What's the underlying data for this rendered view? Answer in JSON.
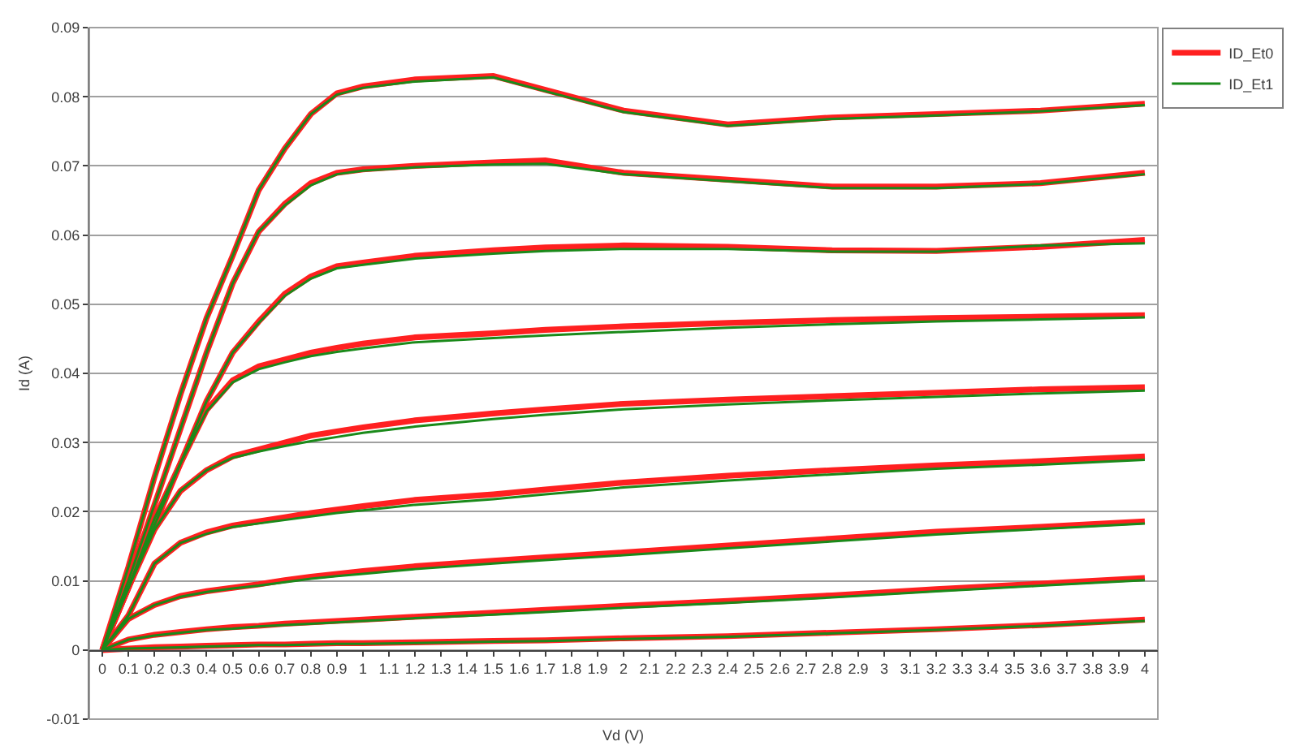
{
  "chart_data": {
    "type": "line",
    "xlabel": "Vd (V)",
    "ylabel": "Id (A)",
    "x": [
      0,
      0.1,
      0.2,
      0.3,
      0.4,
      0.5,
      0.6,
      0.7,
      0.8,
      0.9,
      1.0,
      1.2,
      1.5,
      1.7,
      2.0,
      2.4,
      2.8,
      3.2,
      3.6,
      4.0
    ],
    "xlim": [
      -0.05,
      4.05
    ],
    "xticks": [
      0,
      0.1,
      0.2,
      0.3,
      0.4,
      0.5,
      0.6,
      0.7,
      0.8,
      0.9,
      1,
      1.1,
      1.2,
      1.3,
      1.4,
      1.5,
      1.6,
      1.7,
      1.8,
      1.9,
      2,
      2.1,
      2.2,
      2.3,
      2.4,
      2.5,
      2.6,
      2.7,
      2.8,
      2.9,
      3,
      3.1,
      3.2,
      3.3,
      3.4,
      3.5,
      3.6,
      3.7,
      3.8,
      3.9,
      4
    ],
    "ylim": [
      -0.01,
      0.09
    ],
    "yticks": [
      -0.01,
      0,
      0.01,
      0.02,
      0.03,
      0.04,
      0.05,
      0.06,
      0.07,
      0.08,
      0.09
    ],
    "grid": "y",
    "legend": "top right",
    "marker": "none",
    "line_style": "solid",
    "series": [
      {
        "name": "ID_Et0",
        "color": "#ff2020",
        "values": [
          0,
          0.012,
          0.025,
          0.037,
          0.048,
          0.057,
          0.0665,
          0.0725,
          0.0775,
          0.0805,
          0.0815,
          0.0825,
          0.083,
          0.081,
          0.078,
          0.076,
          0.077,
          0.0775,
          0.078,
          0.079
        ]
      },
      {
        "color": "#ff2020",
        "values": [
          0,
          0.01,
          0.021,
          0.032,
          0.043,
          0.053,
          0.0605,
          0.0645,
          0.0675,
          0.069,
          0.0695,
          0.07,
          0.0705,
          0.0708,
          0.069,
          0.068,
          0.067,
          0.067,
          0.0675,
          0.069
        ]
      },
      {
        "color": "#ff2020",
        "values": [
          0,
          0.009,
          0.018,
          0.027,
          0.036,
          0.043,
          0.0475,
          0.0515,
          0.054,
          0.0555,
          0.056,
          0.057,
          0.0578,
          0.0582,
          0.0585,
          0.0583,
          0.0578,
          0.0577,
          0.0583,
          0.0593
        ]
      },
      {
        "color": "#ff2020",
        "values": [
          0,
          0.009,
          0.019,
          0.027,
          0.0347,
          0.039,
          0.041,
          0.042,
          0.043,
          0.0437,
          0.0443,
          0.0452,
          0.0458,
          0.0463,
          0.0468,
          0.0473,
          0.0477,
          0.048,
          0.0482,
          0.0484
        ]
      },
      {
        "color": "#ff2020",
        "values": [
          0,
          0.009,
          0.0174,
          0.023,
          0.026,
          0.028,
          0.029,
          0.03,
          0.031,
          0.0316,
          0.0322,
          0.0332,
          0.0342,
          0.0348,
          0.0356,
          0.0362,
          0.0367,
          0.0372,
          0.0377,
          0.038
        ]
      },
      {
        "color": "#ff2020",
        "values": [
          0,
          0.005,
          0.0125,
          0.0155,
          0.017,
          0.018,
          0.0186,
          0.0192,
          0.0198,
          0.0203,
          0.0208,
          0.0217,
          0.0225,
          0.0232,
          0.0242,
          0.0252,
          0.026,
          0.0267,
          0.0273,
          0.028
        ]
      },
      {
        "color": "#ff2020",
        "values": [
          0,
          0.0045,
          0.0065,
          0.0078,
          0.0085,
          0.009,
          0.0095,
          0.0101,
          0.0106,
          0.011,
          0.0114,
          0.0121,
          0.0129,
          0.0134,
          0.0141,
          0.0151,
          0.0161,
          0.0171,
          0.0178,
          0.0186
        ]
      },
      {
        "color": "#ff2020",
        "values": [
          0,
          0.0015,
          0.0022,
          0.0026,
          0.003,
          0.0033,
          0.0035,
          0.0038,
          0.004,
          0.0042,
          0.0044,
          0.0048,
          0.0054,
          0.0058,
          0.0064,
          0.0071,
          0.0079,
          0.0088,
          0.0096,
          0.0104
        ]
      },
      {
        "color": "#ff2020",
        "values": [
          0,
          0.0002,
          0.0004,
          0.0005,
          0.0006,
          0.0007,
          0.0008,
          0.0008,
          0.0009,
          0.001,
          0.001,
          0.0011,
          0.0013,
          0.0014,
          0.0017,
          0.002,
          0.0025,
          0.003,
          0.0036,
          0.0044
        ]
      },
      {
        "name": "ID_Et1",
        "color": "#1a8a1a",
        "values": [
          0,
          0.012,
          0.025,
          0.037,
          0.048,
          0.057,
          0.0665,
          0.0725,
          0.0775,
          0.0803,
          0.0813,
          0.0822,
          0.0828,
          0.0808,
          0.0778,
          0.0758,
          0.0768,
          0.0773,
          0.0779,
          0.0788
        ]
      },
      {
        "color": "#1a8a1a",
        "values": [
          0,
          0.01,
          0.021,
          0.032,
          0.043,
          0.053,
          0.0605,
          0.0643,
          0.0672,
          0.0688,
          0.0693,
          0.0698,
          0.0702,
          0.0703,
          0.0688,
          0.0678,
          0.0668,
          0.0668,
          0.0674,
          0.0688
        ]
      },
      {
        "color": "#1a8a1a",
        "values": [
          0,
          0.009,
          0.018,
          0.027,
          0.036,
          0.043,
          0.0473,
          0.0512,
          0.0537,
          0.0552,
          0.0557,
          0.0566,
          0.0573,
          0.0577,
          0.058,
          0.058,
          0.0576,
          0.0576,
          0.0585,
          0.0588
        ]
      },
      {
        "color": "#1a8a1a",
        "values": [
          0,
          0.009,
          0.019,
          0.027,
          0.0345,
          0.0387,
          0.0406,
          0.0416,
          0.0425,
          0.0431,
          0.0436,
          0.0445,
          0.0451,
          0.0455,
          0.046,
          0.0466,
          0.0471,
          0.0475,
          0.0478,
          0.0481
        ]
      },
      {
        "color": "#1a8a1a",
        "values": [
          0,
          0.009,
          0.0174,
          0.023,
          0.026,
          0.0278,
          0.0287,
          0.0295,
          0.0302,
          0.0308,
          0.0314,
          0.0323,
          0.0334,
          0.034,
          0.0348,
          0.0355,
          0.0361,
          0.0366,
          0.0371,
          0.0375
        ]
      },
      {
        "color": "#1a8a1a",
        "values": [
          0,
          0.005,
          0.0125,
          0.0155,
          0.0168,
          0.0178,
          0.0183,
          0.0188,
          0.0193,
          0.0198,
          0.0202,
          0.021,
          0.0218,
          0.0225,
          0.0235,
          0.0245,
          0.0254,
          0.0262,
          0.0268,
          0.0275
        ]
      },
      {
        "color": "#1a8a1a",
        "values": [
          0,
          0.0045,
          0.0065,
          0.0077,
          0.0084,
          0.0089,
          0.0093,
          0.0098,
          0.0103,
          0.0107,
          0.011,
          0.0117,
          0.0125,
          0.013,
          0.0137,
          0.0147,
          0.0157,
          0.0167,
          0.0175,
          0.0183
        ]
      },
      {
        "color": "#1a8a1a",
        "values": [
          0,
          0.0015,
          0.0021,
          0.0025,
          0.0029,
          0.0031,
          0.0034,
          0.0036,
          0.0038,
          0.004,
          0.0042,
          0.0046,
          0.0051,
          0.0055,
          0.0061,
          0.0068,
          0.0076,
          0.0085,
          0.0093,
          0.0101
        ]
      },
      {
        "color": "#1a8a1a",
        "values": [
          0,
          0.0002,
          0.0003,
          0.0004,
          0.0005,
          0.0006,
          0.0007,
          0.0007,
          0.0008,
          0.0009,
          0.0009,
          0.001,
          0.0012,
          0.0013,
          0.0016,
          0.0019,
          0.0024,
          0.0029,
          0.0035,
          0.0042
        ]
      }
    ]
  }
}
